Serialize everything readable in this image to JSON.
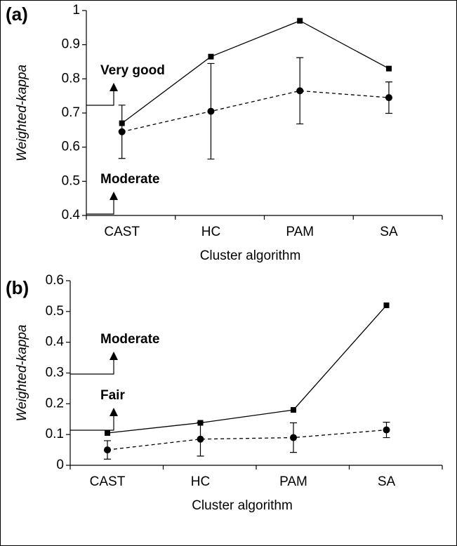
{
  "chart_data": [
    {
      "type": "line",
      "title": "(a)",
      "y_label": "Weighted-kappa",
      "x_label": "Cluster algorithm",
      "categories": [
        "CAST",
        "HC",
        "PAM",
        "SA"
      ],
      "ylim": [
        0.4,
        1
      ],
      "yticks": [
        0.4,
        0.5,
        0.6,
        0.7,
        0.8,
        0.9,
        1
      ],
      "series": [
        {
          "color": "#000000",
          "style": "solid",
          "marker": "square",
          "values": [
            0.67,
            0.865,
            0.97,
            0.83
          ]
        },
        {
          "color": "#000000",
          "style": "dashed",
          "marker": "circle",
          "values": [
            0.645,
            0.705,
            0.765,
            0.745
          ],
          "errors": [
            0.078,
            0.14,
            0.097,
            0.046
          ]
        }
      ],
      "annotations": [
        "Very good",
        "Moderate"
      ]
    },
    {
      "type": "line",
      "title": "(b)",
      "y_label": "Weighted-kappa",
      "x_label": "Cluster algorithm",
      "categories": [
        "CAST",
        "HC",
        "PAM",
        "SA"
      ],
      "ylim": [
        0,
        0.6
      ],
      "yticks": [
        0,
        0.1,
        0.2,
        0.3,
        0.4,
        0.5,
        0.6
      ],
      "series": [
        {
          "color": "#000000",
          "style": "solid",
          "marker": "square",
          "values": [
            0.105,
            0.138,
            0.18,
            0.52
          ]
        },
        {
          "color": "#000000",
          "style": "dashed",
          "marker": "circle",
          "values": [
            0.05,
            0.085,
            0.09,
            0.115
          ],
          "errors": [
            0.03,
            0.055,
            0.048,
            0.025
          ]
        }
      ],
      "annotations": [
        "Moderate",
        "Fair"
      ]
    }
  ]
}
